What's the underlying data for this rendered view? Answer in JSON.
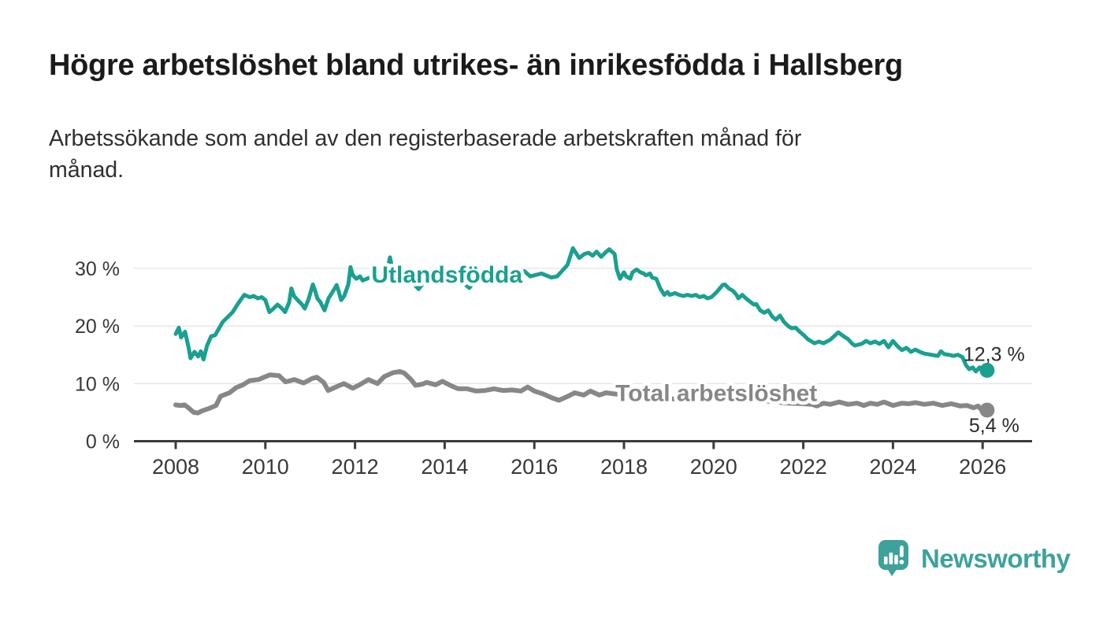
{
  "header": {
    "title": "Högre arbetslöshet bland utrikes- än inrikesfödda i Hallsberg",
    "subtitle": "Arbetssökande som andel av den registerbaserade arbetskraften månad för\nmånad."
  },
  "branding": {
    "name": "Newsworthy",
    "color": "#3ea29b"
  },
  "chart_data": {
    "type": "line",
    "title": "",
    "xlabel": "",
    "ylabel": "",
    "unit": "%",
    "grid": "horizontal",
    "x_axis": {
      "ticks": [
        2008,
        2010,
        2012,
        2014,
        2016,
        2018,
        2020,
        2022,
        2024,
        2026
      ]
    },
    "y_axis": {
      "range": [
        0,
        35
      ],
      "ticks": [
        {
          "value": 0,
          "label": "0 %"
        },
        {
          "value": 10,
          "label": "10 %"
        },
        {
          "value": 20,
          "label": "20 %"
        },
        {
          "value": 30,
          "label": "30 %"
        }
      ]
    },
    "series": [
      {
        "id": "utlandsfodda",
        "name": "Utlandsfödda",
        "color": "#1aa091",
        "label": {
          "text": "Utlandsfödda",
          "x": 2014.05,
          "y": 28.9
        },
        "end_label": {
          "text": "12,3 %",
          "dx": -30,
          "dy": -12
        },
        "latest_value": 12.3,
        "points": [
          [
            2008.0,
            18.6
          ],
          [
            2008.07,
            19.7
          ],
          [
            2008.12,
            18.0
          ],
          [
            2008.21,
            19.0
          ],
          [
            2008.29,
            16.2
          ],
          [
            2008.33,
            14.4
          ],
          [
            2008.42,
            15.5
          ],
          [
            2008.5,
            14.7
          ],
          [
            2008.56,
            15.6
          ],
          [
            2008.62,
            14.2
          ],
          [
            2008.7,
            16.6
          ],
          [
            2008.79,
            18.2
          ],
          [
            2008.88,
            18.4
          ],
          [
            2009.05,
            20.7
          ],
          [
            2009.14,
            21.4
          ],
          [
            2009.27,
            22.4
          ],
          [
            2009.41,
            24.1
          ],
          [
            2009.53,
            25.4
          ],
          [
            2009.65,
            25.0
          ],
          [
            2009.74,
            25.2
          ],
          [
            2009.83,
            24.8
          ],
          [
            2009.92,
            25.0
          ],
          [
            2010.0,
            24.5
          ],
          [
            2010.09,
            22.4
          ],
          [
            2010.18,
            23.0
          ],
          [
            2010.27,
            23.7
          ],
          [
            2010.36,
            23.1
          ],
          [
            2010.44,
            22.4
          ],
          [
            2010.53,
            24.1
          ],
          [
            2010.58,
            26.5
          ],
          [
            2010.64,
            25.2
          ],
          [
            2010.72,
            24.5
          ],
          [
            2010.81,
            23.8
          ],
          [
            2010.88,
            23.0
          ],
          [
            2010.97,
            24.8
          ],
          [
            2011.06,
            27.2
          ],
          [
            2011.11,
            26.1
          ],
          [
            2011.16,
            24.8
          ],
          [
            2011.23,
            24.1
          ],
          [
            2011.32,
            22.7
          ],
          [
            2011.41,
            24.8
          ],
          [
            2011.5,
            25.9
          ],
          [
            2011.59,
            27.1
          ],
          [
            2011.64,
            25.9
          ],
          [
            2011.69,
            24.5
          ],
          [
            2011.76,
            25.2
          ],
          [
            2011.85,
            27.2
          ],
          [
            2011.9,
            30.2
          ],
          [
            2011.95,
            28.8
          ],
          [
            2012.03,
            28.2
          ],
          [
            2012.11,
            28.6
          ],
          [
            2012.17,
            27.9
          ],
          [
            2012.3,
            28.3
          ],
          [
            2012.45,
            28.7
          ],
          [
            2012.6,
            28.4
          ],
          [
            2012.7,
            28.9
          ],
          [
            2012.78,
            31.9
          ],
          [
            2012.86,
            29.0
          ],
          [
            2013.05,
            28.9
          ],
          [
            2013.2,
            28.2
          ],
          [
            2013.42,
            26.4
          ],
          [
            2013.6,
            28.3
          ],
          [
            2013.75,
            28.6
          ],
          [
            2013.9,
            28.4
          ],
          [
            2014.05,
            28.7
          ],
          [
            2014.2,
            28.3
          ],
          [
            2014.4,
            27.6
          ],
          [
            2014.55,
            26.6
          ],
          [
            2014.7,
            28.3
          ],
          [
            2014.9,
            28.7
          ],
          [
            2015.05,
            29.0
          ],
          [
            2015.2,
            28.5
          ],
          [
            2015.4,
            28.8
          ],
          [
            2015.6,
            28.5
          ],
          [
            2015.78,
            29.5
          ],
          [
            2015.91,
            28.6
          ],
          [
            2016.16,
            29.1
          ],
          [
            2016.38,
            28.4
          ],
          [
            2016.51,
            28.6
          ],
          [
            2016.74,
            30.6
          ],
          [
            2016.86,
            33.5
          ],
          [
            2017.0,
            31.8
          ],
          [
            2017.12,
            32.5
          ],
          [
            2017.21,
            32.7
          ],
          [
            2017.3,
            32.2
          ],
          [
            2017.39,
            32.9
          ],
          [
            2017.49,
            32.0
          ],
          [
            2017.58,
            32.7
          ],
          [
            2017.67,
            33.3
          ],
          [
            2017.79,
            32.5
          ],
          [
            2017.84,
            29.8
          ],
          [
            2017.91,
            28.2
          ],
          [
            2018.0,
            29.3
          ],
          [
            2018.05,
            28.6
          ],
          [
            2018.14,
            28.2
          ],
          [
            2018.19,
            29.3
          ],
          [
            2018.28,
            29.8
          ],
          [
            2018.37,
            29.3
          ],
          [
            2018.44,
            29.1
          ],
          [
            2018.49,
            28.8
          ],
          [
            2018.58,
            29.1
          ],
          [
            2018.63,
            28.4
          ],
          [
            2018.72,
            28.2
          ],
          [
            2018.81,
            26.5
          ],
          [
            2018.9,
            25.4
          ],
          [
            2018.97,
            25.9
          ],
          [
            2019.02,
            25.4
          ],
          [
            2019.14,
            25.7
          ],
          [
            2019.23,
            25.4
          ],
          [
            2019.32,
            25.2
          ],
          [
            2019.42,
            25.4
          ],
          [
            2019.51,
            25.2
          ],
          [
            2019.6,
            25.4
          ],
          [
            2019.69,
            25.0
          ],
          [
            2019.78,
            25.2
          ],
          [
            2019.86,
            24.8
          ],
          [
            2019.95,
            25.0
          ],
          [
            2020.07,
            25.9
          ],
          [
            2020.2,
            27.1
          ],
          [
            2020.25,
            27.2
          ],
          [
            2020.34,
            26.5
          ],
          [
            2020.43,
            26.1
          ],
          [
            2020.51,
            25.4
          ],
          [
            2020.55,
            24.8
          ],
          [
            2020.64,
            25.4
          ],
          [
            2020.69,
            25.0
          ],
          [
            2020.78,
            24.4
          ],
          [
            2020.9,
            23.7
          ],
          [
            2020.95,
            23.8
          ],
          [
            2021.04,
            22.7
          ],
          [
            2021.13,
            22.3
          ],
          [
            2021.22,
            22.7
          ],
          [
            2021.31,
            21.6
          ],
          [
            2021.39,
            21.1
          ],
          [
            2021.48,
            21.8
          ],
          [
            2021.57,
            20.7
          ],
          [
            2021.66,
            20.0
          ],
          [
            2021.74,
            19.6
          ],
          [
            2021.83,
            19.7
          ],
          [
            2021.92,
            19.0
          ],
          [
            2022.01,
            18.4
          ],
          [
            2022.1,
            17.7
          ],
          [
            2022.25,
            17.0
          ],
          [
            2022.35,
            17.3
          ],
          [
            2022.45,
            17.0
          ],
          [
            2022.6,
            17.6
          ],
          [
            2022.7,
            18.3
          ],
          [
            2022.78,
            18.9
          ],
          [
            2022.9,
            18.2
          ],
          [
            2023.0,
            17.7
          ],
          [
            2023.08,
            17.0
          ],
          [
            2023.15,
            16.6
          ],
          [
            2023.3,
            16.9
          ],
          [
            2023.4,
            17.4
          ],
          [
            2023.5,
            17.0
          ],
          [
            2023.6,
            17.3
          ],
          [
            2023.7,
            16.9
          ],
          [
            2023.8,
            17.4
          ],
          [
            2023.9,
            16.3
          ],
          [
            2024.0,
            17.4
          ],
          [
            2024.1,
            16.5
          ],
          [
            2024.2,
            15.8
          ],
          [
            2024.3,
            16.2
          ],
          [
            2024.4,
            15.5
          ],
          [
            2024.5,
            15.9
          ],
          [
            2024.6,
            15.5
          ],
          [
            2024.7,
            15.2
          ],
          [
            2024.85,
            15.0
          ],
          [
            2025.0,
            14.8
          ],
          [
            2025.07,
            15.6
          ],
          [
            2025.15,
            15.1
          ],
          [
            2025.25,
            15.0
          ],
          [
            2025.35,
            14.8
          ],
          [
            2025.45,
            15.0
          ],
          [
            2025.55,
            14.6
          ],
          [
            2025.63,
            13.2
          ],
          [
            2025.7,
            12.5
          ],
          [
            2025.78,
            12.8
          ],
          [
            2025.85,
            12.1
          ],
          [
            2025.93,
            12.8
          ],
          [
            2026.0,
            12.1
          ],
          [
            2026.1,
            12.3
          ]
        ]
      },
      {
        "id": "total",
        "name": "Total arbetslöshet",
        "color": "#878787",
        "label": {
          "text": "Total arbetslöshet",
          "x": 2020.06,
          "y": 8.3
        },
        "end_label": {
          "text": "5,4 %",
          "dx": -23,
          "dy": 28
        },
        "latest_value": 5.4,
        "points": [
          [
            2008.0,
            6.3
          ],
          [
            2008.1,
            6.2
          ],
          [
            2008.2,
            6.3
          ],
          [
            2008.3,
            5.7
          ],
          [
            2008.4,
            5.0
          ],
          [
            2008.5,
            4.9
          ],
          [
            2008.6,
            5.3
          ],
          [
            2008.75,
            5.7
          ],
          [
            2008.9,
            6.2
          ],
          [
            2009.0,
            7.8
          ],
          [
            2009.2,
            8.4
          ],
          [
            2009.35,
            9.3
          ],
          [
            2009.5,
            9.8
          ],
          [
            2009.65,
            10.5
          ],
          [
            2009.85,
            10.7
          ],
          [
            2010.0,
            11.2
          ],
          [
            2010.1,
            11.5
          ],
          [
            2010.3,
            11.4
          ],
          [
            2010.45,
            10.3
          ],
          [
            2010.65,
            10.7
          ],
          [
            2010.85,
            10.1
          ],
          [
            2011.05,
            10.9
          ],
          [
            2011.15,
            11.1
          ],
          [
            2011.3,
            10.2
          ],
          [
            2011.4,
            8.8
          ],
          [
            2011.6,
            9.5
          ],
          [
            2011.75,
            10.0
          ],
          [
            2011.95,
            9.2
          ],
          [
            2012.1,
            9.8
          ],
          [
            2012.3,
            10.7
          ],
          [
            2012.5,
            10.0
          ],
          [
            2012.65,
            11.2
          ],
          [
            2012.85,
            11.9
          ],
          [
            2013.0,
            12.1
          ],
          [
            2013.1,
            11.8
          ],
          [
            2013.25,
            10.7
          ],
          [
            2013.35,
            9.7
          ],
          [
            2013.5,
            9.9
          ],
          [
            2013.6,
            10.2
          ],
          [
            2013.8,
            9.8
          ],
          [
            2013.95,
            10.4
          ],
          [
            2014.05,
            10.0
          ],
          [
            2014.15,
            9.6
          ],
          [
            2014.3,
            9.1
          ],
          [
            2014.5,
            9.1
          ],
          [
            2014.7,
            8.7
          ],
          [
            2014.9,
            8.8
          ],
          [
            2015.1,
            9.1
          ],
          [
            2015.3,
            8.8
          ],
          [
            2015.5,
            8.9
          ],
          [
            2015.7,
            8.7
          ],
          [
            2015.85,
            9.4
          ],
          [
            2016.0,
            8.7
          ],
          [
            2016.2,
            8.2
          ],
          [
            2016.4,
            7.5
          ],
          [
            2016.55,
            7.1
          ],
          [
            2016.75,
            7.8
          ],
          [
            2016.9,
            8.4
          ],
          [
            2017.1,
            8.0
          ],
          [
            2017.25,
            8.7
          ],
          [
            2017.45,
            8.0
          ],
          [
            2017.6,
            8.4
          ],
          [
            2017.8,
            8.2
          ],
          [
            2018.1,
            7.9
          ],
          [
            2018.4,
            7.6
          ],
          [
            2018.7,
            7.9
          ],
          [
            2019.0,
            7.4
          ],
          [
            2019.3,
            7.2
          ],
          [
            2019.6,
            7.0
          ],
          [
            2019.9,
            7.1
          ],
          [
            2020.2,
            7.5
          ],
          [
            2020.5,
            7.7
          ],
          [
            2020.8,
            7.4
          ],
          [
            2021.1,
            7.0
          ],
          [
            2021.4,
            6.8
          ],
          [
            2021.7,
            6.6
          ],
          [
            2022.0,
            6.5
          ],
          [
            2022.2,
            6.4
          ],
          [
            2022.3,
            6.1
          ],
          [
            2022.45,
            6.6
          ],
          [
            2022.6,
            6.4
          ],
          [
            2022.8,
            6.8
          ],
          [
            2023.0,
            6.4
          ],
          [
            2023.2,
            6.6
          ],
          [
            2023.35,
            6.2
          ],
          [
            2023.5,
            6.6
          ],
          [
            2023.65,
            6.4
          ],
          [
            2023.8,
            6.8
          ],
          [
            2024.0,
            6.2
          ],
          [
            2024.2,
            6.6
          ],
          [
            2024.35,
            6.5
          ],
          [
            2024.5,
            6.7
          ],
          [
            2024.7,
            6.4
          ],
          [
            2024.9,
            6.6
          ],
          [
            2025.1,
            6.2
          ],
          [
            2025.3,
            6.5
          ],
          [
            2025.5,
            6.1
          ],
          [
            2025.65,
            6.2
          ],
          [
            2025.8,
            5.8
          ],
          [
            2025.9,
            6.1
          ],
          [
            2026.0,
            5.2
          ],
          [
            2026.1,
            5.4
          ]
        ]
      }
    ]
  }
}
